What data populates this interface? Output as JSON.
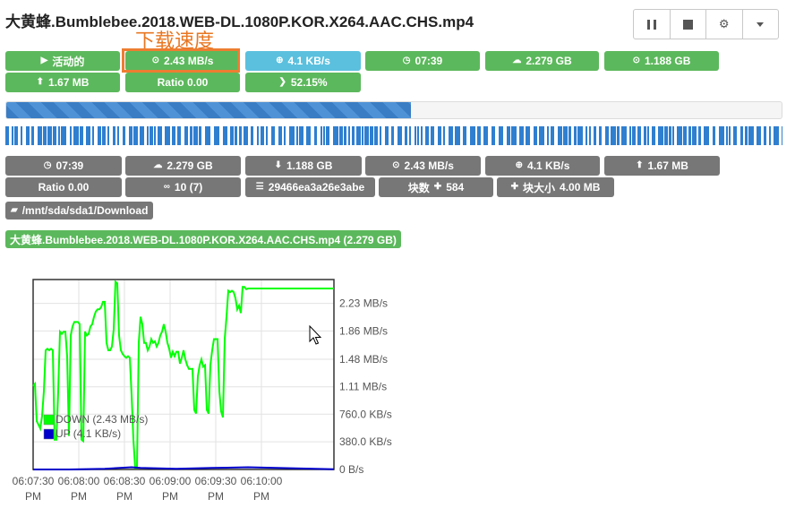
{
  "title": "大黄蜂.Bumblebee.2018.WEB-DL.1080P.KOR.X264.AAC.CHS.mp4",
  "toolbar": {
    "buttons": [
      "pause-icon",
      "stop-icon",
      "gear-icon",
      "caret-down-icon"
    ]
  },
  "annotation": {
    "label": "下载速度"
  },
  "status": {
    "state": "活动的",
    "down_speed": "2.43 MB/s",
    "up_speed": "4.1 KB/s",
    "elapsed": "07:39",
    "size": "2.279 GB",
    "downloaded": "1.188 GB",
    "uploaded": "1.67 MB",
    "ratio": "Ratio 0.00",
    "progress": "52.15%"
  },
  "progress_fraction": 0.5215,
  "details": {
    "elapsed": "07:39",
    "size": "2.279 GB",
    "downloaded": "1.188 GB",
    "down_speed": "2.43 MB/s",
    "up_speed": "4.1 KB/s",
    "uploaded": "1.67 MB",
    "ratio": "Ratio 0.00",
    "peers": "10 (7)",
    "hash": "29466ea3a26e3abe",
    "pieces_label": "块数",
    "pieces_count": "584",
    "piece_size_label": "块大小",
    "piece_size": "4.00 MB"
  },
  "path": "/mnt/sda/sda1/Download",
  "file": "大黄蜂.Bumblebee.2018.WEB-DL.1080P.KOR.X264.AAC.CHS.mp4 (2.279 GB)",
  "colors": {
    "green": "#5cb85c",
    "blue": "#5bc0de",
    "gray": "#777777",
    "annotation": "#ed7d31",
    "down_line": "#00ff00",
    "up_line": "#0000cc"
  },
  "chart_data": {
    "type": "line",
    "x_tick_labels": [
      [
        "06:07:30",
        "PM"
      ],
      [
        "06:08:00",
        "PM"
      ],
      [
        "06:08:30",
        "PM"
      ],
      [
        "06:09:00",
        "PM"
      ],
      [
        "06:09:30",
        "PM"
      ],
      [
        "06:10:00",
        "PM"
      ]
    ],
    "y_tick_labels": [
      "0 B/s",
      "380.0 KB/s",
      "760.0 KB/s",
      "1.11 MB/s",
      "1.48 MB/s",
      "1.86 MB/s",
      "2.23 MB/s"
    ],
    "ylim": [
      0,
      2.55
    ],
    "y_unit": "MB/s",
    "legend": [
      {
        "name": "DOWN (2.43 MB/s)",
        "color": "#00ff00"
      },
      {
        "name": "UP (4.1 KB/s)",
        "color": "#0000cc"
      }
    ],
    "series": [
      {
        "name": "DOWN (2.43 MB/s)",
        "color": "#00ff00",
        "x": [
          0,
          1,
          2,
          3,
          4,
          5,
          6,
          7,
          8,
          9,
          10,
          11,
          12,
          13,
          14,
          15,
          16,
          17,
          18,
          19,
          20,
          21,
          22,
          23,
          24,
          25,
          26,
          27,
          28,
          29,
          30,
          31,
          32,
          33,
          34,
          35,
          36,
          37,
          38,
          39,
          40,
          41,
          42,
          43,
          44,
          45,
          46,
          47,
          48,
          49,
          50,
          51,
          52,
          53,
          54,
          55,
          56,
          57,
          58,
          59,
          60,
          61,
          62,
          63,
          64,
          65,
          66,
          67,
          68,
          69,
          70,
          71,
          72,
          73,
          74,
          75,
          76,
          77,
          78,
          79,
          80,
          81,
          82,
          83,
          84,
          85,
          86,
          87,
          88,
          89,
          90,
          91,
          92,
          93,
          94,
          95,
          96,
          97,
          98,
          99,
          100,
          101,
          102,
          103,
          104,
          105,
          106,
          107,
          108,
          109,
          110,
          111,
          112,
          113,
          114,
          115,
          116,
          117,
          118,
          119,
          120,
          121,
          122,
          123,
          124,
          125,
          126,
          127,
          128,
          129,
          130,
          131,
          132,
          133,
          134,
          135,
          136,
          137,
          138,
          139,
          140,
          141,
          142,
          143,
          144,
          145,
          146,
          147,
          148,
          149,
          150,
          151,
          152,
          153,
          154,
          155,
          156,
          157,
          158,
          159,
          160,
          161,
          162,
          163,
          164,
          165,
          166,
          167,
          168
        ],
        "values": [
          1.12,
          1.15,
          0.65,
          0.6,
          0.55,
          0.72,
          1.05,
          1.6,
          1.62,
          1.6,
          1.62,
          1.6,
          0.4,
          0.4,
          1.05,
          1.85,
          1.82,
          1.85,
          1.85,
          1.52,
          0.45,
          1.8,
          1.92,
          1.98,
          1.98,
          1.98,
          1.95,
          0.4,
          0.38,
          1.85,
          1.8,
          1.82,
          1.92,
          1.95,
          2.05,
          2.12,
          2.15,
          2.15,
          2.18,
          2.25,
          2.25,
          1.7,
          1.6,
          1.6,
          1.65,
          1.88,
          2.52,
          2.5,
          1.8,
          1.6,
          1.55,
          1.52,
          1.5,
          1.52,
          1.5,
          1.0,
          0.4,
          0.02,
          0.02,
          1.7,
          2.05,
          1.95,
          1.7,
          1.7,
          1.6,
          1.65,
          1.75,
          1.7,
          1.72,
          1.65,
          1.7,
          1.8,
          1.85,
          1.95,
          1.85,
          1.7,
          1.62,
          1.5,
          1.58,
          1.52,
          1.58,
          1.58,
          1.42,
          1.5,
          1.6,
          1.48,
          1.4,
          1.35,
          1.35,
          1.35,
          0.8,
          0.75,
          1.25,
          1.4,
          1.48,
          1.38,
          1.4,
          0.8,
          0.75,
          1.4,
          1.6,
          1.75,
          1.75,
          1.75,
          1.05,
          0.78,
          0.7,
          1.75,
          2.05,
          2.4,
          2.38,
          2.4,
          2.38,
          2.3,
          2.15,
          2.2,
          2.1,
          2.45,
          2.45,
          2.42,
          2.43,
          2.43,
          2.43,
          2.43,
          2.43,
          2.43,
          2.43,
          2.43,
          2.43,
          2.43,
          2.43,
          2.43,
          2.43,
          2.43,
          2.43,
          2.43,
          2.43,
          2.43,
          2.43,
          2.43,
          2.43,
          2.43,
          2.43,
          2.43,
          2.43,
          2.43,
          2.43,
          2.43,
          2.43,
          2.43,
          2.43,
          2.43,
          2.43,
          2.43,
          2.43,
          2.43,
          2.43,
          2.43,
          2.43,
          2.43,
          2.43,
          2.43,
          2.43,
          2.43,
          2.43,
          2.43,
          2.43,
          2.43,
          2.43
        ]
      },
      {
        "name": "UP (4.1 KB/s)",
        "color": "#0000cc",
        "x": [
          0,
          20,
          40,
          55,
          60,
          70,
          80,
          100,
          120,
          168
        ],
        "values": [
          0.0,
          0.0,
          0.01,
          0.03,
          0.02,
          0.015,
          0.01,
          0.02,
          0.03,
          0.004
        ]
      }
    ]
  }
}
